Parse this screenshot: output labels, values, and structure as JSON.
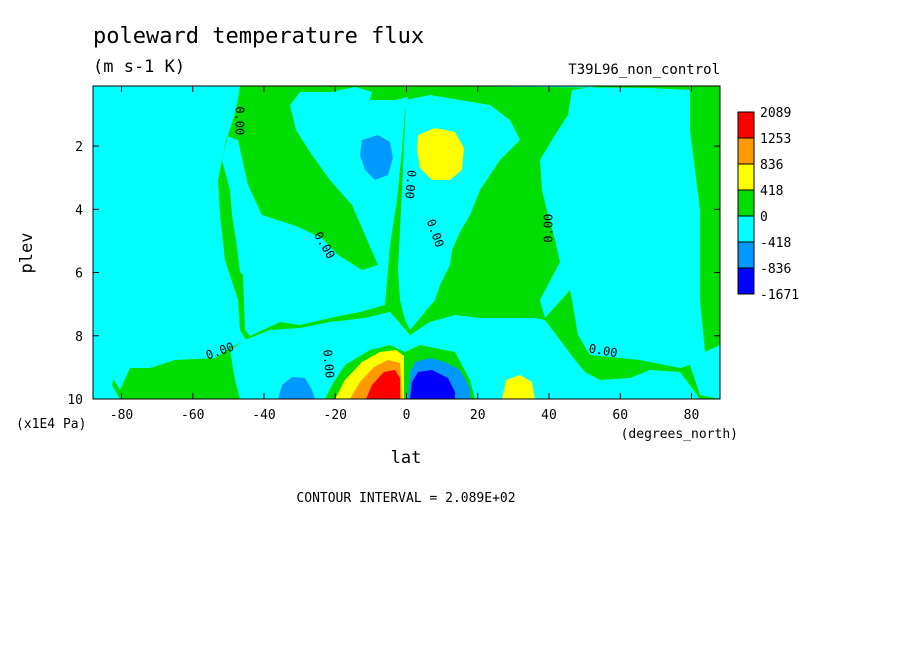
{
  "chart_data": {
    "type": "contour",
    "title": "poleward temperature flux",
    "units": "(m s-1 K)",
    "run_label": "T39L96_non_control",
    "xlabel": "lat",
    "x_unit_label": "(degrees_north)",
    "ylabel": "plev",
    "y_unit_label": "(x1E4 Pa)",
    "xlim": [
      -88,
      88
    ],
    "ylim": [
      10,
      0.1
    ],
    "x_ticks": [
      -80,
      -60,
      -40,
      -20,
      0,
      20,
      40,
      60,
      80
    ],
    "y_ticks": [
      2,
      4,
      6,
      8,
      10
    ],
    "contour_interval_text": "CONTOUR INTERVAL = 2.089E+02",
    "zero_contour_label": "0.00",
    "legend": {
      "placement": "right",
      "levels": [
        "2089",
        "1253",
        "836",
        "418",
        "0",
        "-418",
        "-836",
        "-1671"
      ],
      "colors": [
        "#ff0000",
        "#ff9900",
        "#ffff00",
        "#00dd00",
        "#00ffff",
        "#0099ff",
        "#0000ff"
      ]
    },
    "features": [
      {
        "name": "southern upper negative cell",
        "lat": -10,
        "plev": 2.3,
        "band": "-836"
      },
      {
        "name": "northern upper positive cell",
        "lat": 10,
        "plev": 2.4,
        "band": "418"
      },
      {
        "name": "southern lower positive maximum",
        "lat": -6,
        "plev": 9.5,
        "band": "2089"
      },
      {
        "name": "northern lower negative maximum",
        "lat": 8,
        "plev": 9.5,
        "band": "-1671"
      },
      {
        "name": "northern lower positive cell",
        "lat": 32,
        "plev": 9.6,
        "band": "418"
      },
      {
        "name": "southern lower negative cell",
        "lat": -32,
        "plev": 9.6,
        "band": "-418"
      }
    ]
  }
}
